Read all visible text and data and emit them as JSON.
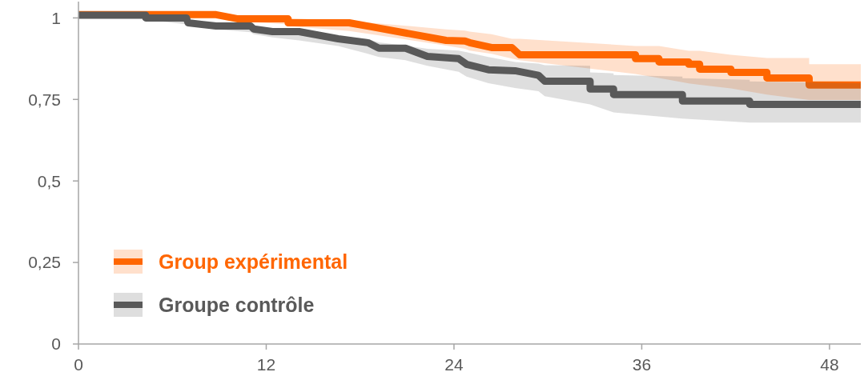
{
  "chart_data": {
    "type": "line",
    "xlim": [
      0,
      50
    ],
    "xticks": [
      0,
      12,
      24,
      36,
      48
    ],
    "ylim": [
      0,
      1.05
    ],
    "yticks": [
      {
        "value": 0,
        "label": "0"
      },
      {
        "value": 0.25,
        "label": "0,25"
      },
      {
        "value": 0.5,
        "label": "0,5"
      },
      {
        "value": 0.75,
        "label": "0,75"
      },
      {
        "value": 1,
        "label": "1"
      }
    ],
    "grid": false,
    "legend": "bottom left",
    "marker": "none",
    "line_style": "solid",
    "series": [
      {
        "name": "Group expérimental",
        "color": "#ff6600",
        "x": [
          0,
          8.8,
          10.2,
          13.4,
          13.4,
          17.3,
          18.7,
          23.5,
          24.7,
          25.0,
          26.4,
          27.7,
          28.2,
          35.6,
          35.6,
          37.1,
          37.1,
          39.0,
          39.0,
          39.7,
          39.7,
          41.7,
          41.7,
          44.0,
          44.0,
          46.7,
          46.7,
          50
        ],
        "values": [
          1.01,
          1.01,
          0.997,
          0.997,
          0.985,
          0.985,
          0.973,
          0.931,
          0.929,
          0.924,
          0.909,
          0.909,
          0.887,
          0.887,
          0.875,
          0.875,
          0.865,
          0.865,
          0.858,
          0.858,
          0.843,
          0.843,
          0.833,
          0.833,
          0.816,
          0.816,
          0.794,
          0.794
        ],
        "upper": [
          1.015,
          1.015,
          1.002,
          1.002,
          1.0,
          0.99,
          0.985,
          0.965,
          0.961,
          0.958,
          0.95,
          0.936,
          0.936,
          0.914,
          0.914,
          0.914,
          0.914,
          0.899,
          0.899,
          0.899,
          0.899,
          0.887,
          0.887,
          0.877,
          0.877,
          0.877,
          0.858,
          0.858
        ],
        "lower": [
          1.005,
          1.005,
          0.99,
          0.98,
          0.975,
          0.96,
          0.95,
          0.915,
          0.905,
          0.9,
          0.89,
          0.875,
          0.87,
          0.828,
          0.828,
          0.816,
          0.816,
          0.799,
          0.799,
          0.795,
          0.795,
          0.784,
          0.784,
          0.765,
          0.765,
          0.748,
          0.748,
          0.748
        ]
      },
      {
        "name": "Groupe contrôle",
        "color": "#595959",
        "x": [
          0,
          4.3,
          4.3,
          6.9,
          7.0,
          8.8,
          11.0,
          11.2,
          12.4,
          14.1,
          16.6,
          18.5,
          19.2,
          20.9,
          22.3,
          24.3,
          24.8,
          26.2,
          27.9,
          29.4,
          29.8,
          32.7,
          32.7,
          34.2,
          34.2,
          38.6,
          38.6,
          42.9,
          42.9,
          50
        ],
        "values": [
          1.008,
          1.008,
          1.0,
          1.0,
          0.985,
          0.975,
          0.975,
          0.966,
          0.958,
          0.958,
          0.936,
          0.924,
          0.907,
          0.907,
          0.882,
          0.875,
          0.858,
          0.841,
          0.838,
          0.824,
          0.806,
          0.806,
          0.782,
          0.782,
          0.765,
          0.765,
          0.745,
          0.745,
          0.735,
          0.735
        ],
        "upper": [
          1.013,
          1.013,
          1.005,
          1.005,
          0.99,
          0.98,
          0.98,
          0.972,
          0.965,
          0.963,
          0.945,
          0.935,
          0.925,
          0.915,
          0.905,
          0.9,
          0.895,
          0.88,
          0.865,
          0.86,
          0.855,
          0.853,
          0.833,
          0.83,
          0.825,
          0.82,
          0.815,
          0.81,
          0.805,
          0.8
        ],
        "lower": [
          1.003,
          1.003,
          0.995,
          0.98,
          0.975,
          0.965,
          0.956,
          0.95,
          0.94,
          0.931,
          0.914,
          0.89,
          0.88,
          0.87,
          0.853,
          0.835,
          0.82,
          0.8,
          0.785,
          0.775,
          0.76,
          0.735,
          0.735,
          0.71,
          0.71,
          0.691,
          0.691,
          0.679,
          0.679,
          0.679
        ]
      }
    ]
  }
}
